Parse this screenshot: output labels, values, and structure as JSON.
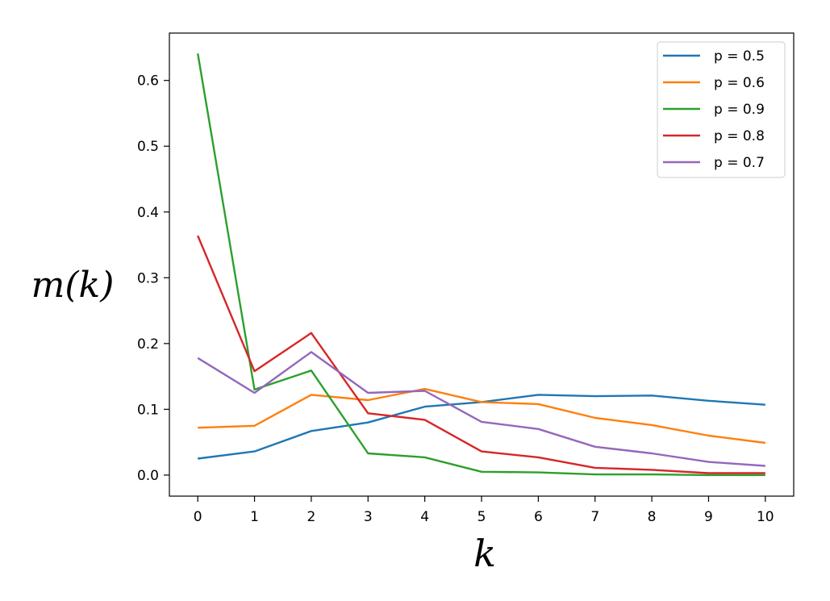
{
  "chart_data": {
    "type": "line",
    "title": "",
    "xlabel": "k",
    "ylabel": "m(k)",
    "x": [
      0,
      1,
      2,
      3,
      4,
      5,
      6,
      7,
      8,
      9,
      10
    ],
    "xticks": [
      "0",
      "1",
      "2",
      "3",
      "4",
      "5",
      "6",
      "7",
      "8",
      "9",
      "10"
    ],
    "yticks": [
      "0.0",
      "0.1",
      "0.2",
      "0.3",
      "0.4",
      "0.5",
      "0.6"
    ],
    "ytick_values": [
      0.0,
      0.1,
      0.2,
      0.3,
      0.4,
      0.5,
      0.6
    ],
    "xlim": [
      -0.5,
      10.5
    ],
    "ylim": [
      -0.032,
      0.672
    ],
    "grid": false,
    "legend_position": "top-right",
    "series": [
      {
        "name": "p = 0.5",
        "color": "#1f77b4",
        "values": [
          0.025,
          0.036,
          0.067,
          0.08,
          0.104,
          0.111,
          0.122,
          0.12,
          0.121,
          0.113,
          0.107
        ]
      },
      {
        "name": "p = 0.6",
        "color": "#ff7f0e",
        "values": [
          0.072,
          0.075,
          0.122,
          0.114,
          0.131,
          0.111,
          0.108,
          0.087,
          0.076,
          0.06,
          0.049
        ]
      },
      {
        "name": "p = 0.9",
        "color": "#2ca02c",
        "values": [
          0.641,
          0.13,
          0.159,
          0.033,
          0.027,
          0.005,
          0.004,
          0.001,
          0.001,
          0.0,
          0.0
        ]
      },
      {
        "name": "p = 0.8",
        "color": "#d62728",
        "values": [
          0.364,
          0.158,
          0.216,
          0.094,
          0.084,
          0.036,
          0.027,
          0.011,
          0.008,
          0.003,
          0.003
        ]
      },
      {
        "name": "p = 0.7",
        "color": "#9467bd",
        "values": [
          0.178,
          0.125,
          0.187,
          0.125,
          0.128,
          0.081,
          0.07,
          0.043,
          0.033,
          0.02,
          0.014
        ]
      }
    ]
  }
}
